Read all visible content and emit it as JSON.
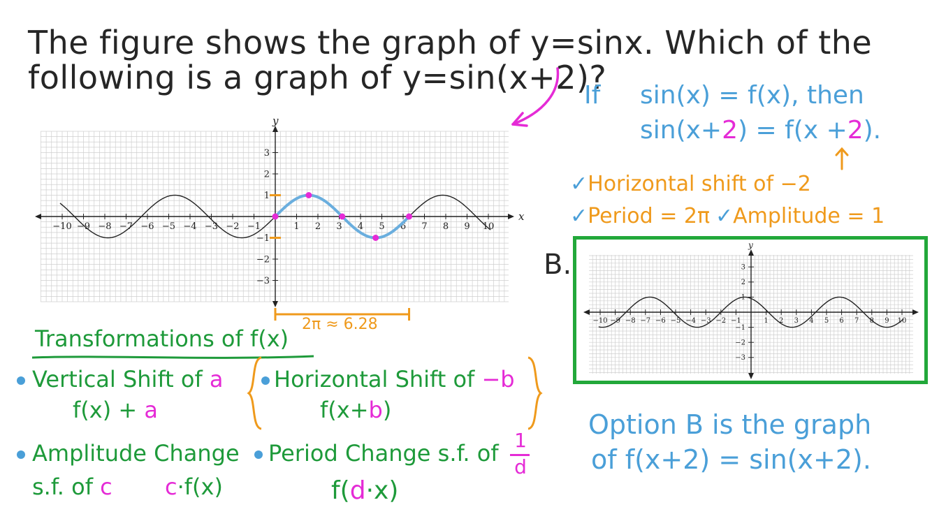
{
  "question": {
    "line1": "The figure shows the graph of y=sinx. Which of the",
    "line2": "following is a graph of y=sin(x+2)?"
  },
  "note_if": {
    "if_word": "If",
    "line1": "sin(x) = f(x), then",
    "line2_a": "sin(x+",
    "line2_b": "2",
    "line2_c": ") = f(x +",
    "line2_d": "2",
    "line2_e": ")."
  },
  "checks": {
    "horizontal_shift": "Horizontal shift of −2",
    "period": "Period = 2π",
    "amplitude": "Amplitude = 1"
  },
  "option_label": "B.",
  "period_annotation": "2π ≈ 6.28",
  "transformations": {
    "title": "Transformations of f(x)",
    "vertical_a": "Vertical Shift of",
    "vertical_b": "a",
    "vertical_formula_a": "f(x) +",
    "vertical_formula_b": "a",
    "horizontal_a": "Horizontal Shift of",
    "horizontal_b": "−b",
    "horizontal_formula_a": "f(x+",
    "horizontal_formula_b": "b",
    "horizontal_formula_c": ")",
    "amplitude_a": "Amplitude Change",
    "amplitude_b": "s.f. of",
    "amplitude_c": "c",
    "amplitude_formula_a": "c",
    "amplitude_formula_b": "·f(x)",
    "period_a": "Period Change s.f. of",
    "period_num": "1",
    "period_den": "d",
    "period_formula_a": "f(",
    "period_formula_b": "d",
    "period_formula_c": "·x)"
  },
  "answer": {
    "line1": "Option B is the graph",
    "line2": "of f(x+2) = sin(x+2)."
  },
  "chart_data": [
    {
      "type": "line",
      "function": "y = sin(x)",
      "xlim": [
        -10.5,
        10.5
      ],
      "ylim": [
        -4,
        4
      ],
      "x_ticks": [
        -10,
        -9,
        -8,
        -7,
        -6,
        -5,
        -4,
        -3,
        -2,
        -1,
        1,
        2,
        3,
        4,
        5,
        6,
        7,
        8,
        9,
        10
      ],
      "y_ticks": [
        -3,
        -2,
        -1,
        1,
        2,
        3
      ],
      "xlabel": "x",
      "ylabel": "y",
      "highlighted_period": [
        0,
        6.28
      ],
      "key_points": [
        [
          0,
          0
        ],
        [
          1.57,
          1
        ],
        [
          3.14,
          0
        ],
        [
          4.71,
          -1
        ],
        [
          6.28,
          0
        ]
      ]
    },
    {
      "type": "line",
      "function": "y = sin(x+2)",
      "xlim": [
        -10.5,
        10.5
      ],
      "ylim": [
        -4,
        4
      ],
      "x_ticks": [
        -10,
        -9,
        -8,
        -7,
        -6,
        -5,
        -4,
        -3,
        -2,
        -1,
        1,
        2,
        3,
        4,
        5,
        6,
        7,
        8,
        9,
        10
      ],
      "y_ticks": [
        -3,
        -2,
        -1,
        1,
        2,
        3
      ],
      "xlabel": "x",
      "ylabel": "y"
    }
  ],
  "colors": {
    "question": "#262626",
    "blue": "#4a9fd8",
    "orange": "#ef9a1c",
    "green": "#1e9a3a",
    "magenta": "#e52bd6",
    "box": "#22a83a",
    "grid": "#c9c9c9"
  }
}
